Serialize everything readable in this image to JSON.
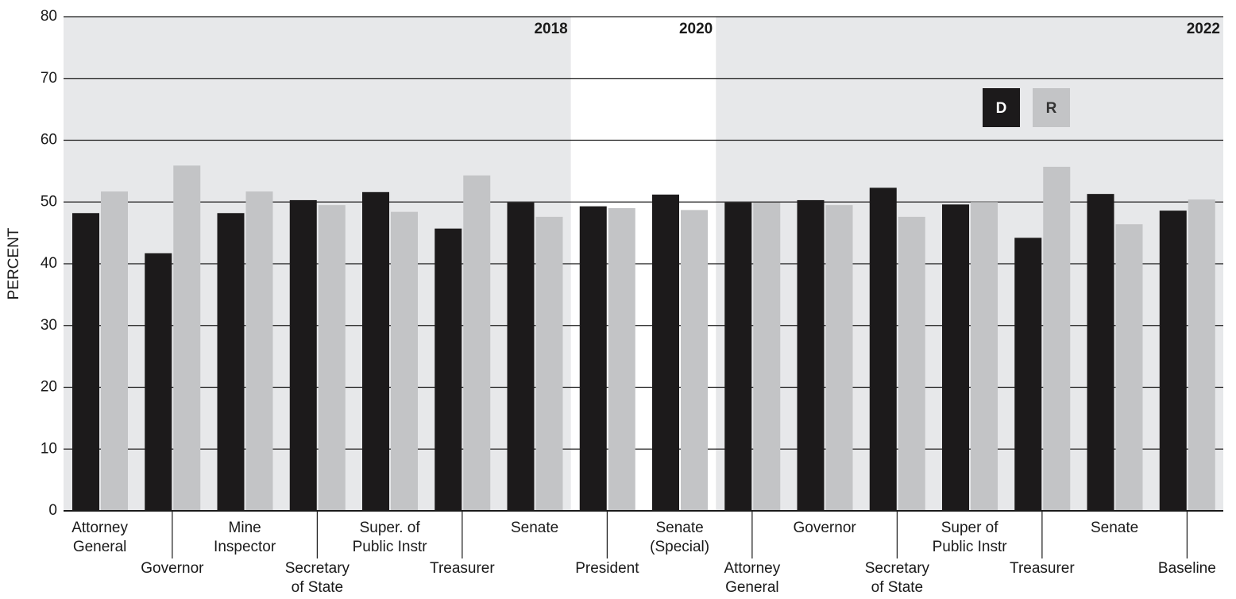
{
  "chart_data": {
    "type": "bar",
    "y_label": "PERCENT",
    "categories": [
      [
        "Attorney",
        "General"
      ],
      [
        "Governor"
      ],
      [
        "Mine",
        "Inspector"
      ],
      [
        "Secretary",
        "of State"
      ],
      [
        "Super. of",
        "Public Instr"
      ],
      [
        "Treasurer"
      ],
      [
        "Senate"
      ],
      [
        "President"
      ],
      [
        "Senate",
        "(Special)"
      ],
      [
        "Attorney",
        "General"
      ],
      [
        "Governor"
      ],
      [
        "Secretary",
        "of State"
      ],
      [
        "Super of",
        "Public Instr"
      ],
      [
        "Treasurer"
      ],
      [
        "Senate"
      ],
      [
        "Baseline"
      ]
    ],
    "periods": [
      {
        "label": "2018",
        "first": 0,
        "last": 6,
        "shaded": true
      },
      {
        "label": "2020",
        "first": 7,
        "last": 8,
        "shaded": false
      },
      {
        "label": "2022",
        "first": 9,
        "last": 15,
        "shaded": true
      }
    ],
    "series": [
      {
        "name": "D",
        "color": "#1c1a1b",
        "text_color": "#ffffff",
        "values": [
          48.2,
          41.7,
          48.2,
          50.3,
          51.6,
          45.7,
          49.9,
          49.3,
          51.2,
          49.9,
          50.3,
          52.3,
          49.6,
          44.2,
          51.3,
          48.6
        ]
      },
      {
        "name": "R",
        "color": "#c3c4c6",
        "text_color": "#333333",
        "values": [
          51.7,
          55.9,
          51.7,
          49.5,
          48.4,
          54.3,
          47.6,
          49.0,
          48.7,
          49.9,
          49.5,
          47.6,
          50.0,
          55.7,
          46.4,
          50.4
        ]
      }
    ],
    "ylim": [
      0,
      80
    ],
    "yticks": [
      0,
      10,
      20,
      30,
      40,
      50,
      60,
      70,
      80
    ],
    "grid": true,
    "legend_position": "top-right"
  }
}
